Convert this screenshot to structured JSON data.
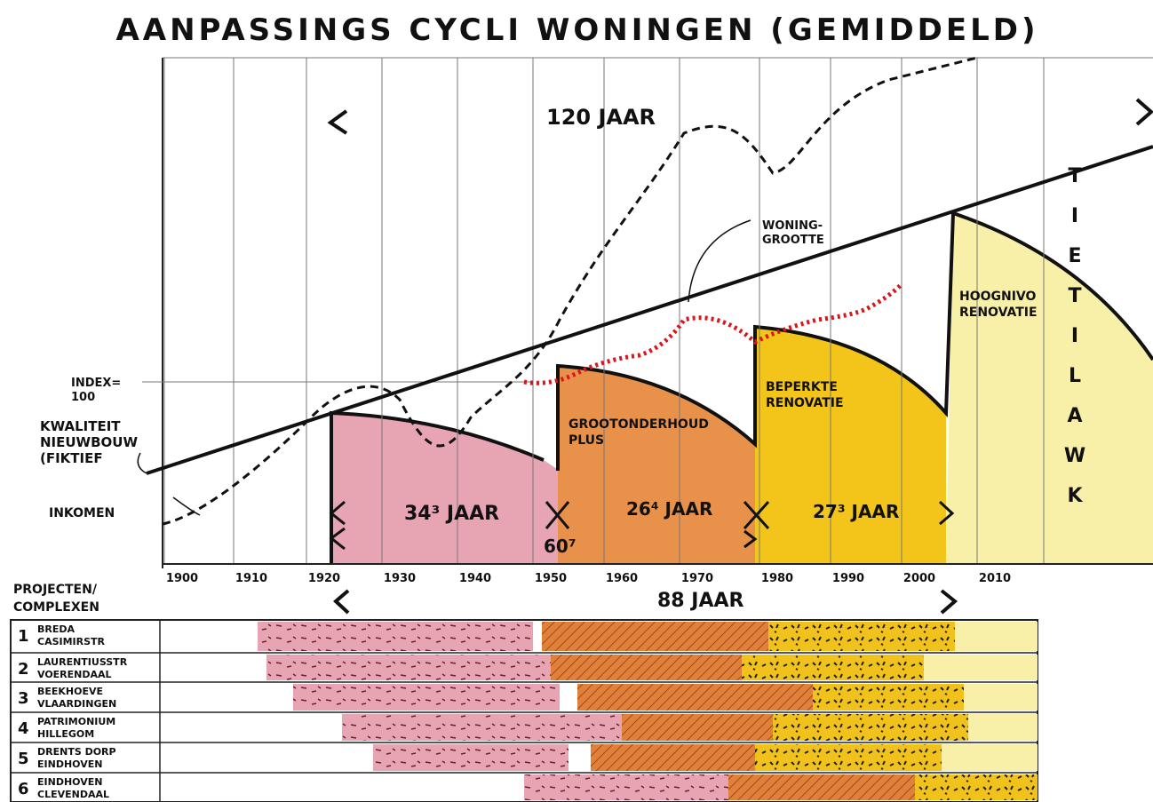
{
  "title": "AANPASSINGS CYCLI WONINGEN (GEMIDDELD)",
  "years": [
    1900,
    1910,
    1920,
    1930,
    1940,
    1950,
    1960,
    1970,
    1980,
    1990,
    2000,
    2010
  ],
  "labels": {
    "span_total": "120 JAAR",
    "woninggrootte": [
      "WONING-",
      "GROOTTE"
    ],
    "index": [
      "INDEX=",
      "100"
    ],
    "kwaliteit_nieuwbouw": [
      "KWALITEIT",
      "NIEUWBOUW",
      "(FIKTIEF"
    ],
    "inkomen": "INKOMEN",
    "kwaliteit_vertical": [
      "K",
      "W",
      "A",
      "L",
      "I",
      "T",
      "E",
      "I",
      "T"
    ],
    "span_88": "88 JAAR"
  },
  "phases": [
    {
      "label": [
        "GROOTONDERHOUD",
        "PLUS"
      ]
    },
    {
      "label": [
        "BEPERKTE",
        "RENOVATIE"
      ]
    },
    {
      "label": [
        "HOOGNIVO",
        "RENOVATIE"
      ]
    }
  ],
  "durations": [
    "34³ JAAR",
    "26⁴ JAAR",
    "27³ JAAR",
    "60⁷"
  ],
  "projects": {
    "heading": [
      "PROJECTEN/",
      "COMPLEXEN"
    ],
    "rows": [
      {
        "number": 1,
        "name": [
          "BREDA",
          "CASIMIRSTR"
        ]
      },
      {
        "number": 2,
        "name": [
          "LAURENTIUSSTR",
          "VOERENDAAL"
        ]
      },
      {
        "number": 3,
        "name": [
          "BEEKHOEVE",
          "VLAARDINGEN"
        ]
      },
      {
        "number": 4,
        "name": [
          "PATRIMONIUM",
          "HILLEGOM"
        ]
      },
      {
        "number": 5,
        "name": [
          "DRENTS DORP",
          "EINDHOVEN"
        ]
      },
      {
        "number": 6,
        "name": [
          "EINDHOVEN",
          "CLEVENDAAL"
        ]
      }
    ]
  }
}
